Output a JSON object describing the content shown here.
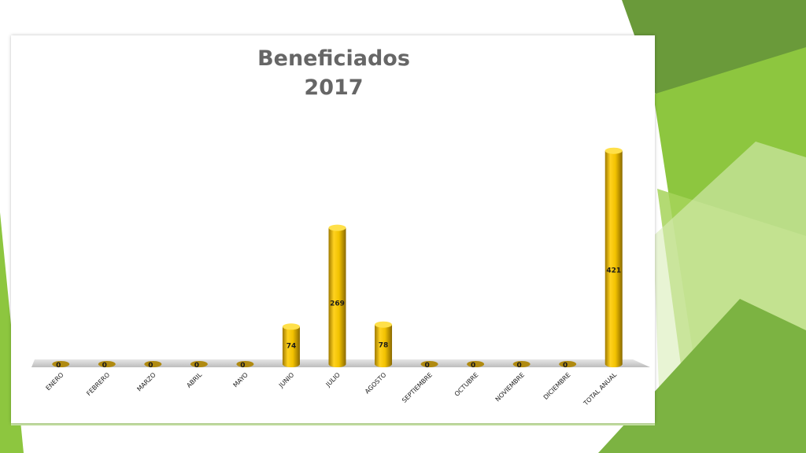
{
  "slide": {
    "accent_colors": [
      "#8dc63f",
      "#6a9a3a",
      "#a6d35a",
      "#d8ecb8"
    ]
  },
  "chart_data": {
    "type": "bar",
    "title": "Beneficiados",
    "subtitle": "2017",
    "categories": [
      "ENERO",
      "FEBRERO",
      "MARZO",
      "ABRIL",
      "MAYO",
      "JUNIO",
      "JULIO",
      "AGOSTO",
      "SEPTIEMBRE",
      "OCTUBRE",
      "NOVIEMBRE",
      "DICIEMBRE",
      "TOTAL ANUAL"
    ],
    "values": [
      0,
      0,
      0,
      0,
      0,
      74,
      269,
      78,
      0,
      0,
      0,
      0,
      421
    ],
    "value_labels": [
      "0",
      "0",
      "0",
      "0",
      "0",
      "74",
      "269",
      "78",
      "0",
      "0",
      "0",
      "0",
      "421"
    ],
    "xlabel": "",
    "ylabel": "",
    "ylim": [
      0,
      450
    ],
    "grid": false,
    "legend": "none",
    "bar_style": "3d-cylinder",
    "bar_color": "#f2c200"
  }
}
